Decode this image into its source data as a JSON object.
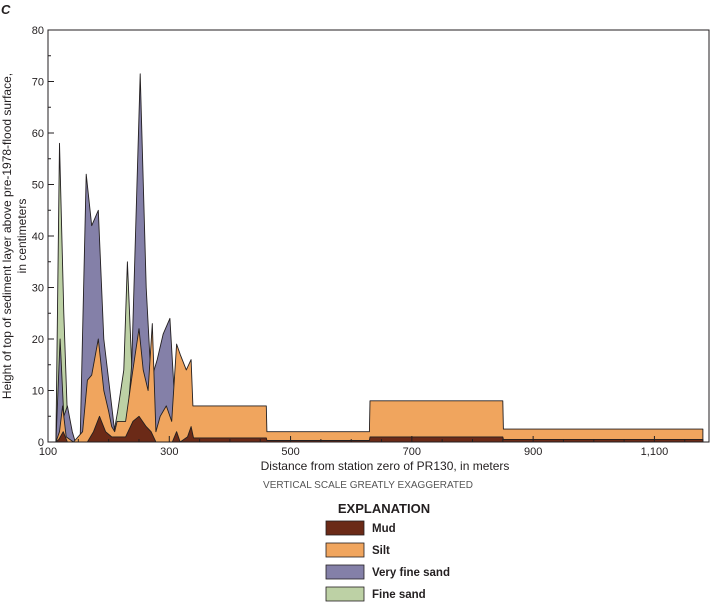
{
  "panel_label": "C",
  "note": "VERTICAL SCALE GREATLY EXAGGERATED",
  "colors": {
    "mud": "#6b2a17",
    "silt": "#f0a55e",
    "very_fine_sand": "#8480a8",
    "fine_sand": "#bdd1a5",
    "outline": "#231f20"
  },
  "chart_data": {
    "type": "area",
    "title": "",
    "xlabel": "Distance from station zero of PR130, in meters",
    "ylabel": [
      "Height of top of sediment layer above pre-1978-flood surface,",
      "in centimeters"
    ],
    "xlim": [
      100,
      1190
    ],
    "ylim": [
      0,
      80
    ],
    "x_ticks": [
      100,
      300,
      500,
      700,
      900,
      1100
    ],
    "x_tick_labels": [
      "100",
      "300",
      "500",
      "700",
      "900",
      "1,100"
    ],
    "y_ticks": [
      0,
      10,
      20,
      30,
      40,
      50,
      60,
      70,
      80
    ],
    "y_tick_labels": [
      "0",
      "10",
      "20",
      "30",
      "40",
      "50",
      "60",
      "70",
      "80"
    ],
    "legend": {
      "title": "EXPLANATION",
      "placement": "bottom-center",
      "items": [
        {
          "label": "Mud",
          "color_key": "mud"
        },
        {
          "label": "Silt",
          "color_key": "silt"
        },
        {
          "label": "Very fine sand",
          "color_key": "very_fine_sand"
        },
        {
          "label": "Fine sand",
          "color_key": "fine_sand"
        }
      ]
    },
    "series": [
      {
        "name": "Fine sand",
        "color_key": "fine_sand",
        "points": [
          [
            113,
            0
          ],
          [
            119,
            58
          ],
          [
            126,
            25
          ],
          [
            132,
            5
          ],
          [
            140,
            0
          ],
          [
            206,
            0
          ],
          [
            215,
            6
          ],
          [
            225,
            14
          ],
          [
            231,
            35
          ],
          [
            238,
            15
          ],
          [
            244,
            6
          ],
          [
            252,
            0
          ]
        ]
      },
      {
        "name": "Very fine sand",
        "color_key": "very_fine_sand",
        "points": [
          [
            113,
            0
          ],
          [
            120,
            20
          ],
          [
            126,
            5
          ],
          [
            132,
            7
          ],
          [
            140,
            2
          ],
          [
            145,
            0
          ],
          [
            153,
            0
          ],
          [
            163,
            52
          ],
          [
            172,
            42
          ],
          [
            183,
            45
          ],
          [
            192,
            20
          ],
          [
            202,
            10
          ],
          [
            210,
            2
          ],
          [
            214,
            0
          ],
          [
            228,
            0
          ],
          [
            238,
            15
          ],
          [
            252,
            71.5
          ],
          [
            262,
            30
          ],
          [
            270,
            12
          ],
          [
            280,
            16
          ],
          [
            290,
            21
          ],
          [
            301,
            24
          ],
          [
            308,
            10
          ],
          [
            312,
            0
          ]
        ]
      },
      {
        "name": "Silt",
        "color_key": "silt",
        "points": [
          [
            113,
            0
          ],
          [
            119,
            2
          ],
          [
            124,
            7
          ],
          [
            130,
            1
          ],
          [
            142,
            0
          ],
          [
            157,
            2
          ],
          [
            165,
            12
          ],
          [
            172,
            13
          ],
          [
            183,
            20
          ],
          [
            192,
            10
          ],
          [
            200,
            6
          ],
          [
            205,
            3
          ],
          [
            210,
            2
          ],
          [
            214,
            4
          ],
          [
            228,
            4
          ],
          [
            240,
            14
          ],
          [
            250,
            22
          ],
          [
            257,
            14
          ],
          [
            265,
            10
          ],
          [
            272,
            23
          ],
          [
            278,
            2
          ],
          [
            285,
            5
          ],
          [
            295,
            7
          ],
          [
            304,
            4
          ],
          [
            312,
            19
          ],
          [
            318,
            17
          ],
          [
            328,
            14
          ],
          [
            336,
            16
          ],
          [
            339,
            7
          ],
          [
            460,
            7
          ],
          [
            461,
            2
          ],
          [
            630,
            2
          ],
          [
            631,
            8
          ],
          [
            850,
            8
          ],
          [
            851,
            2.5
          ],
          [
            1180,
            2.5
          ],
          [
            1180,
            0
          ]
        ]
      },
      {
        "name": "Mud",
        "color_key": "mud",
        "points": [
          [
            113,
            0
          ],
          [
            118,
            0.5
          ],
          [
            125,
            2
          ],
          [
            132,
            0
          ],
          [
            165,
            0
          ],
          [
            175,
            2
          ],
          [
            185,
            5
          ],
          [
            195,
            2
          ],
          [
            205,
            1
          ],
          [
            228,
            1
          ],
          [
            240,
            4
          ],
          [
            250,
            5
          ],
          [
            262,
            3
          ],
          [
            270,
            2
          ],
          [
            278,
            0
          ],
          [
            305,
            0
          ],
          [
            312,
            2
          ],
          [
            318,
            0
          ],
          [
            330,
            1
          ],
          [
            336,
            3
          ],
          [
            340,
            0.8
          ],
          [
            460,
            0.8
          ],
          [
            461,
            0.3
          ],
          [
            630,
            0.3
          ],
          [
            631,
            1
          ],
          [
            850,
            1
          ],
          [
            851,
            0.5
          ],
          [
            1180,
            0.5
          ],
          [
            1180,
            0
          ]
        ]
      }
    ]
  }
}
